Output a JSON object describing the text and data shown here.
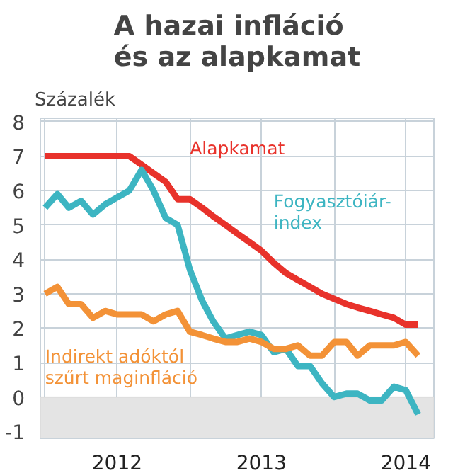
{
  "chart_data": {
    "type": "line",
    "title": "A hazai infláció\nés az alapkamat",
    "ylabel": "Százalék",
    "x": [
      "2012-01",
      "2012-02",
      "2012-03",
      "2012-04",
      "2012-05",
      "2012-06",
      "2012-07",
      "2012-08",
      "2012-09",
      "2012-10",
      "2012-11",
      "2012-12",
      "2013-01",
      "2013-02",
      "2013-03",
      "2013-04",
      "2013-05",
      "2013-06",
      "2013-07",
      "2013-08",
      "2013-09",
      "2013-10",
      "2013-11",
      "2013-12",
      "2014-01",
      "2014-02",
      "2014-03",
      "2014-04",
      "2014-05",
      "2014-06",
      "2014-07",
      "2014-08"
    ],
    "series": [
      {
        "name": "Alapkamat",
        "color": "#e8322b",
        "values": [
          7.0,
          7.0,
          7.0,
          7.0,
          7.0,
          7.0,
          7.0,
          7.0,
          6.75,
          6.5,
          6.25,
          5.75,
          5.75,
          5.5,
          5.25,
          5.0,
          4.75,
          4.5,
          4.25,
          3.9,
          3.6,
          3.4,
          3.2,
          3.0,
          2.85,
          2.7,
          2.6,
          2.5,
          2.4,
          2.3,
          2.1,
          2.1
        ]
      },
      {
        "name": "Fogyasztóiár-index",
        "color": "#3db5c2",
        "values": [
          5.5,
          5.9,
          5.5,
          5.7,
          5.3,
          5.6,
          5.8,
          6.0,
          6.6,
          6.0,
          5.2,
          5.0,
          3.7,
          2.8,
          2.2,
          1.7,
          1.8,
          1.9,
          1.8,
          1.3,
          1.4,
          0.9,
          0.9,
          0.4,
          0.0,
          0.1,
          0.1,
          -0.1,
          -0.1,
          0.3,
          0.2,
          -0.5
        ]
      },
      {
        "name": "Indirekt adóktól szűrt maginfláció",
        "color": "#f39237",
        "values": [
          3.0,
          3.2,
          2.7,
          2.7,
          2.3,
          2.5,
          2.4,
          2.4,
          2.4,
          2.2,
          2.4,
          2.5,
          1.9,
          1.8,
          1.7,
          1.6,
          1.6,
          1.7,
          1.6,
          1.4,
          1.4,
          1.5,
          1.2,
          1.2,
          1.6,
          1.6,
          1.2,
          1.5,
          1.5,
          1.5,
          1.6,
          1.2
        ]
      }
    ],
    "xlim": [
      "2011-12-20",
      "2014-09-10"
    ],
    "xticks": [
      {
        "value": "2012-01-01",
        "label": null
      },
      {
        "value": "2012-07-01",
        "label": "2012"
      },
      {
        "value": "2013-01-01",
        "label": null
      },
      {
        "value": "2013-07-01",
        "label": "2013"
      },
      {
        "value": "2014-01-01",
        "label": null
      },
      {
        "value": "2014-07-01",
        "label": "2014"
      }
    ],
    "ylim": [
      -1.2,
      8.1
    ],
    "yticks": [
      -1,
      0,
      1,
      2,
      3,
      4,
      5,
      6,
      7,
      8
    ],
    "bands": [
      {
        "axis": "y",
        "from": -1.2,
        "to": 0,
        "color": "#e4e4e4"
      }
    ],
    "grid": true,
    "marker": "none",
    "line_style": "solid"
  }
}
